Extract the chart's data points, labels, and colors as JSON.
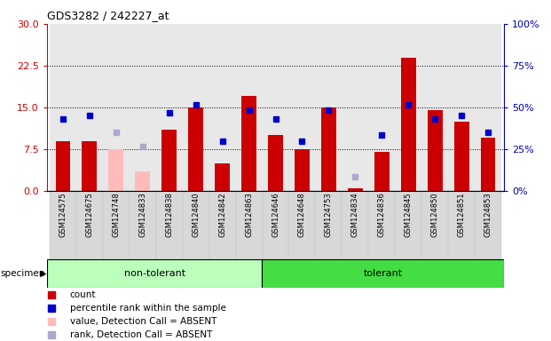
{
  "title": "GDS3282 / 242227_at",
  "samples": [
    "GSM124575",
    "GSM124675",
    "GSM124748",
    "GSM124833",
    "GSM124838",
    "GSM124840",
    "GSM124842",
    "GSM124863",
    "GSM124646",
    "GSM124648",
    "GSM124753",
    "GSM124834",
    "GSM124836",
    "GSM124845",
    "GSM124850",
    "GSM124851",
    "GSM124853"
  ],
  "non_tolerant_count": 8,
  "tolerant_count": 9,
  "group_colors": {
    "non-tolerant": "#bbffbb",
    "tolerant": "#44dd44"
  },
  "red_bars": [
    9.0,
    9.0,
    null,
    null,
    11.0,
    15.0,
    5.0,
    17.0,
    10.0,
    7.5,
    15.0,
    0.5,
    7.0,
    24.0,
    14.5,
    12.5,
    9.5
  ],
  "pink_bars": [
    null,
    null,
    7.5,
    3.5,
    null,
    null,
    null,
    null,
    null,
    null,
    null,
    null,
    null,
    null,
    null,
    null,
    null
  ],
  "blue_squares_left_scale": [
    13.0,
    13.5,
    null,
    null,
    14.0,
    15.5,
    9.0,
    14.5,
    13.0,
    9.0,
    14.5,
    null,
    10.0,
    15.5,
    13.0,
    13.5,
    10.5
  ],
  "light_blue_squares_left_scale": [
    null,
    null,
    10.5,
    8.0,
    null,
    null,
    null,
    null,
    null,
    null,
    null,
    2.5,
    null,
    null,
    null,
    null,
    null
  ],
  "ylim_left": [
    0,
    30
  ],
  "ylim_right": [
    0,
    100
  ],
  "yticks_left": [
    0,
    7.5,
    15.0,
    22.5,
    30
  ],
  "yticks_right": [
    0,
    25,
    50,
    75,
    100
  ],
  "red_color": "#cc0000",
  "pink_color": "#ffbbbb",
  "blue_color": "#0000cc",
  "light_blue_color": "#aaaacc",
  "bar_width": 0.55,
  "left_axis_color": "#cc0000",
  "right_axis_color": "#0000bb",
  "grid_lines": [
    7.5,
    15.0,
    22.5
  ],
  "legend_items": [
    {
      "color": "#cc0000",
      "marker": "s",
      "label": "count"
    },
    {
      "color": "#0000cc",
      "marker": "s",
      "label": "percentile rank within the sample"
    },
    {
      "color": "#ffbbbb",
      "marker": "s",
      "label": "value, Detection Call = ABSENT"
    },
    {
      "color": "#aaaacc",
      "marker": "s",
      "label": "rank, Detection Call = ABSENT"
    }
  ]
}
